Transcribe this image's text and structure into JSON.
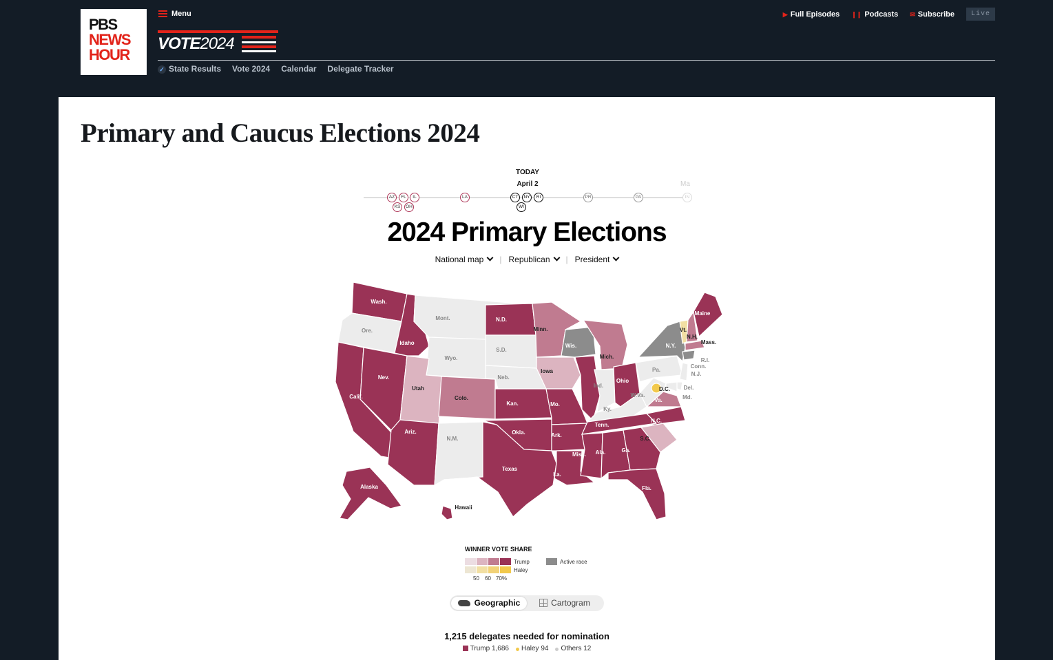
{
  "header": {
    "logo": {
      "line1": "PBS",
      "line2": "NEWS",
      "line3": "HOUR"
    },
    "menu_label": "Menu",
    "vote_word": "VOTE",
    "vote_year": "2024",
    "subnav": [
      "State Results",
      "Vote 2024",
      "Calendar",
      "Delegate Tracker"
    ],
    "top_links": [
      "Full Episodes",
      "Podcasts",
      "Subscribe"
    ],
    "live_label": "Live"
  },
  "page": {
    "title": "Primary and Caucus Elections 2024"
  },
  "timeline": {
    "today_label": "TODAY",
    "today_date": "April 2",
    "faded_label": "Ma",
    "dots": [
      "AZ",
      "FL",
      "IL",
      "KS",
      "OH",
      "LA",
      "CT",
      "NY",
      "RI",
      "WI",
      "PR",
      "PA",
      "IN"
    ]
  },
  "widget": {
    "title": "2024 Primary Elections",
    "selectors": [
      "National map",
      "Republican",
      "President"
    ]
  },
  "map_labels": {
    "wa": "Wash.",
    "or": "Ore.",
    "ca": "Calif.",
    "nv": "Nev.",
    "id": "Idaho",
    "mt": "Mont.",
    "wy": "Wyo.",
    "ut": "Utah",
    "co": "Colo.",
    "az": "Ariz.",
    "nm": "N.M.",
    "nd": "N.D.",
    "sd": "S.D.",
    "ne": "Neb.",
    "ks": "Kan.",
    "ok": "Okla.",
    "tx": "Texas",
    "mn": "Minn.",
    "ia": "Iowa",
    "mo": "Mo.",
    "ar": "Ark.",
    "la": "La.",
    "wi": "Wis.",
    "il": "Ill.",
    "mi": "Mich.",
    "in": "Ind.",
    "oh": "Ohio",
    "ky": "Ky.",
    "tn": "Tenn.",
    "ms": "Miss.",
    "al": "Ala.",
    "ga": "Ga.",
    "fl": "Fla.",
    "sc": "S.C.",
    "nc": "N.C.",
    "va": "Va.",
    "wv": "W.Va.",
    "pa": "Pa.",
    "ny": "N.Y.",
    "vt": "Vt.",
    "nh": "N.H.",
    "me": "Maine",
    "ma": "Mass.",
    "ri": "R.I.",
    "ct": "Conn.",
    "nj": "N.J.",
    "de": "Del.",
    "md": "Md.",
    "dc": "D.C.",
    "ak": "Alaska",
    "hi": "Hawaii"
  },
  "legend": {
    "title": "WINNER VOTE SHARE",
    "trump": "Trump",
    "haley": "Haley",
    "active": "Active race",
    "ticks": [
      "50",
      "60",
      "70%"
    ]
  },
  "view_toggle": [
    "Geographic",
    "Cartogram"
  ],
  "delegates": {
    "headline": "1,215 delegates needed for nomination",
    "items": [
      {
        "name": "Trump",
        "count": "1,686"
      },
      {
        "name": "Haley",
        "count": "94"
      },
      {
        "name": "Others",
        "count": "12"
      }
    ]
  },
  "colors": {
    "trump_dark": "#9a3356",
    "trump_mid": "#c07b90",
    "trump_light": "#dcb4c0",
    "haley": "#f2c94c",
    "haley_light": "#f2dfa3",
    "active": "#8c8c8c",
    "none": "#ececec"
  }
}
